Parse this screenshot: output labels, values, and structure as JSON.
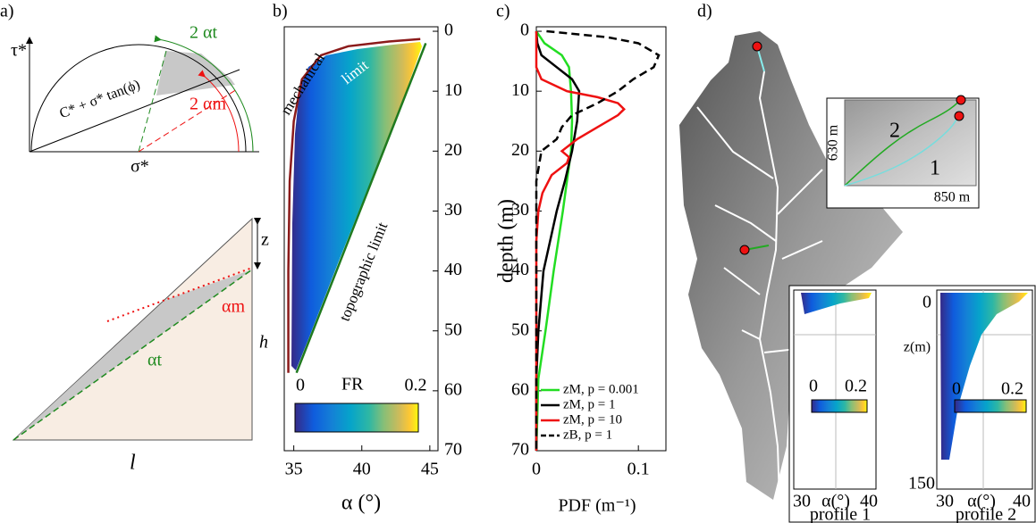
{
  "panel_labels": [
    "a)",
    "b)",
    "c)",
    "d)"
  ],
  "panel_a": {
    "tau": "τ*",
    "sigma": "σ*",
    "envelope": "C* + σ* tan(ϕ)",
    "two_alpha_t": "2 αt",
    "two_alpha_m": "2 αm",
    "z": "z",
    "alpha_m": "αm",
    "h": "h",
    "alpha_t": "αt",
    "l": "l"
  },
  "chart_data": [
    {
      "type": "heatmap",
      "xlabel": "α (°)",
      "xlim": [
        34.3,
        45.6
      ],
      "xticks": [
        35,
        40,
        45
      ],
      "ylim": [
        -0.75,
        70
      ],
      "yticks": [
        0,
        10,
        20,
        30,
        40,
        50,
        60,
        70
      ],
      "colorbar": {
        "label": "FR",
        "ticks": [
          0,
          0.2
        ]
      },
      "curves": [
        {
          "label_lines": [
            "mechanical",
            "limit"
          ],
          "color": "#8b1a1a",
          "alpha": [
            44.3,
            42,
            39,
            37,
            35.6,
            35,
            34.7,
            34.6,
            34.6
          ],
          "depth": [
            1.3,
            1.7,
            2.5,
            4,
            8,
            15,
            25,
            40,
            57
          ]
        },
        {
          "label_lines": [
            "topographic limit"
          ],
          "color": "#1f7a1f",
          "alpha": [
            44.7,
            35.2
          ],
          "depth": [
            2,
            57
          ]
        }
      ]
    },
    {
      "type": "line",
      "xlabel": "PDF (m⁻¹)",
      "ylabel": "depth (m)",
      "xlim": [
        0,
        0.127
      ],
      "xticks": [
        0,
        0.1
      ],
      "ylim": [
        -0.75,
        70
      ],
      "yticks": [
        0,
        10,
        20,
        30,
        40,
        50,
        60,
        70
      ],
      "legend": "lower right",
      "series": [
        {
          "name": "zM, p = 0.001",
          "color": "#22dd22",
          "dash": false,
          "depth": [
            0,
            2,
            4,
            6,
            8,
            10,
            15,
            20,
            25,
            30,
            40,
            50,
            58,
            70
          ],
          "values": [
            0,
            0.008,
            0.025,
            0.032,
            0.033,
            0.034,
            0.035,
            0.034,
            0.03,
            0.026,
            0.017,
            0.009,
            0.002,
            0
          ]
        },
        {
          "name": "zM, p = 1",
          "color": "#000000",
          "dash": false,
          "depth": [
            0,
            2,
            4,
            6,
            8,
            10,
            15,
            20,
            25,
            30,
            40,
            50,
            58,
            70
          ],
          "values": [
            0,
            0.001,
            0.005,
            0.02,
            0.035,
            0.042,
            0.04,
            0.035,
            0.028,
            0.02,
            0.007,
            0.002,
            0,
            0
          ]
        },
        {
          "name": "zM, p = 10",
          "color": "#ee1111",
          "dash": false,
          "depth": [
            0,
            6,
            8,
            10,
            11,
            12,
            13,
            14,
            16,
            18,
            20,
            21,
            22,
            24,
            27,
            30,
            35,
            70
          ],
          "values": [
            0,
            0,
            0.005,
            0.03,
            0.06,
            0.08,
            0.086,
            0.08,
            0.06,
            0.04,
            0.025,
            0.032,
            0.03,
            0.015,
            0.006,
            0.002,
            0,
            0
          ]
        },
        {
          "name": "zB, p = 1",
          "color": "#000000",
          "dash": true,
          "depth": [
            0,
            1,
            2,
            4,
            6,
            8,
            10,
            12,
            14,
            16,
            18,
            20,
            25,
            70
          ],
          "values": [
            0.01,
            0.07,
            0.1,
            0.12,
            0.115,
            0.095,
            0.08,
            0.06,
            0.035,
            0.025,
            0.02,
            0.005,
            0,
            0
          ]
        }
      ]
    }
  ],
  "panel_d": {
    "inset_y": "630 m",
    "inset_x": "850 m",
    "path_2": "2",
    "path_1": "1",
    "zlabel": "z(m)",
    "zticks": [
      0,
      150
    ],
    "profiles": [
      {
        "name": "profile 1",
        "colorbar_ticks": [
          0,
          0.2
        ],
        "xticks": [
          30,
          40
        ],
        "xlabel": "α(°)"
      },
      {
        "name": "profile 2",
        "colorbar_ticks": [
          0,
          0.2
        ],
        "xticks": [
          30,
          40
        ],
        "xlabel": "α(°)"
      }
    ]
  }
}
